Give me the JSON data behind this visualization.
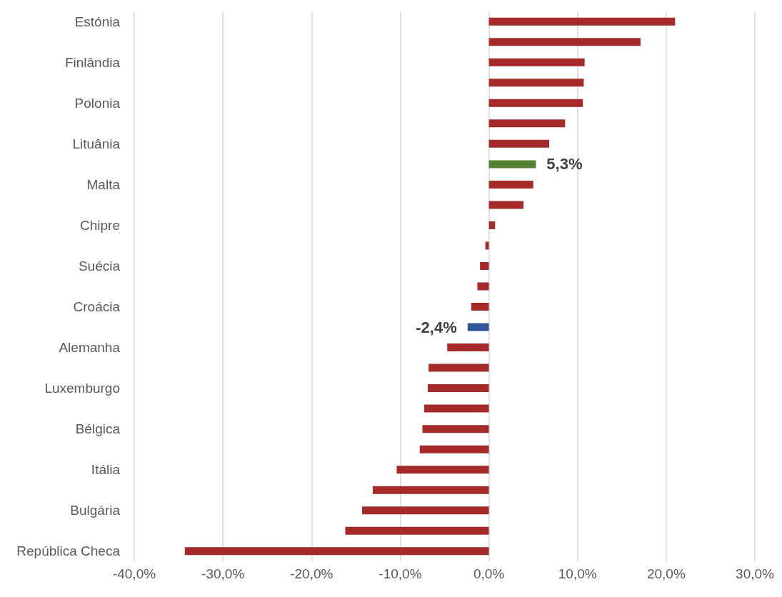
{
  "chart_data": {
    "type": "bar",
    "orientation": "horizontal",
    "categories": [
      "Estónia",
      null,
      "Finlândia",
      null,
      "Polonia",
      null,
      "Lituânia",
      null,
      "Malta",
      null,
      "Chipre",
      null,
      "Suécia",
      null,
      "Croácia",
      null,
      "Alemanha",
      null,
      "Luxemburgo",
      null,
      "Bélgica",
      null,
      "Itália",
      null,
      "Bulgária",
      null,
      "República Checa"
    ],
    "values": [
      21.0,
      17.1,
      10.8,
      10.7,
      10.6,
      8.6,
      6.8,
      5.3,
      5.0,
      3.9,
      0.7,
      -0.4,
      -1.0,
      -1.3,
      -2.0,
      -2.4,
      -4.7,
      -6.8,
      -6.9,
      -7.3,
      -7.5,
      -7.8,
      -10.4,
      -13.1,
      -14.3,
      -16.2,
      -34.3
    ],
    "colors": [
      "#a52a2a",
      "#a52a2a",
      "#a52a2a",
      "#a52a2a",
      "#a52a2a",
      "#a52a2a",
      "#a52a2a",
      "#548235",
      "#a52a2a",
      "#a52a2a",
      "#a52a2a",
      "#a52a2a",
      "#a52a2a",
      "#a52a2a",
      "#a52a2a",
      "#2f5597",
      "#a52a2a",
      "#a52a2a",
      "#a52a2a",
      "#a52a2a",
      "#a52a2a",
      "#a52a2a",
      "#a52a2a",
      "#a52a2a",
      "#a52a2a",
      "#a52a2a",
      "#a52a2a"
    ],
    "value_labels": [
      null,
      null,
      null,
      null,
      null,
      null,
      null,
      "5,3%",
      null,
      null,
      null,
      null,
      null,
      null,
      null,
      "-2,4%",
      null,
      null,
      null,
      null,
      null,
      null,
      null,
      null,
      null,
      null,
      null
    ],
    "xlim": [
      -40,
      30
    ],
    "xticks": [
      {
        "value": -40,
        "label": "-40,0%"
      },
      {
        "value": -30,
        "label": "-30,0%"
      },
      {
        "value": -20,
        "label": "-20,0%"
      },
      {
        "value": -10,
        "label": "-10,0%"
      },
      {
        "value": 0,
        "label": "0,0%"
      },
      {
        "value": 10,
        "label": "10,0%"
      },
      {
        "value": 20,
        "label": "20,0%"
      },
      {
        "value": 30,
        "label": "30,0%"
      }
    ],
    "grid": "x"
  }
}
